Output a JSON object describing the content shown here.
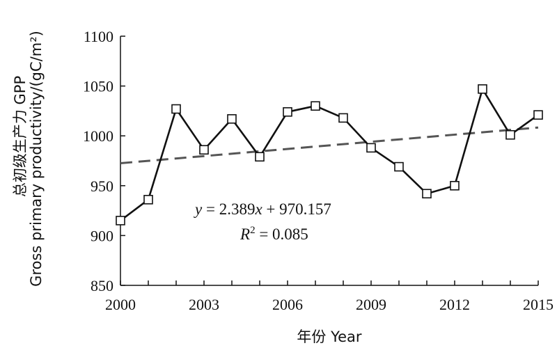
{
  "chart_data": {
    "type": "line",
    "x": [
      2000,
      2001,
      2002,
      2003,
      2004,
      2005,
      2006,
      2007,
      2008,
      2009,
      2010,
      2011,
      2012,
      2013,
      2014,
      2015
    ],
    "series": [
      {
        "values": [
          915,
          936,
          1027,
          986,
          1017,
          979,
          1024,
          1030,
          1018,
          988,
          969,
          942,
          950,
          1047,
          1001,
          1021
        ]
      }
    ],
    "trendline": {
      "slope": 2.389,
      "intercept": 970.157
    },
    "xticks": [
      "2000",
      "2003",
      "2006",
      "2009",
      "2012",
      "2015"
    ],
    "yticks": [
      "850",
      "900",
      "950",
      "1000",
      "1050",
      "1100"
    ],
    "xlim": [
      2000,
      2015
    ],
    "ylim": [
      850,
      1100
    ],
    "xlabel": "年份 Year",
    "ylabel_cn": "总初级生产力 GPP",
    "ylabel_en": "Gross primary productivity/(gC/m²)",
    "equation": {
      "y": "y",
      "mid": " = 2.389",
      "x": "x",
      "tail": " + 970.157"
    },
    "r2": {
      "r": "R",
      "sup": "2",
      "tail": " = 0.085"
    },
    "grid": false,
    "legend": "none",
    "colors": {
      "line": "#111111",
      "trend": "#555555"
    }
  }
}
